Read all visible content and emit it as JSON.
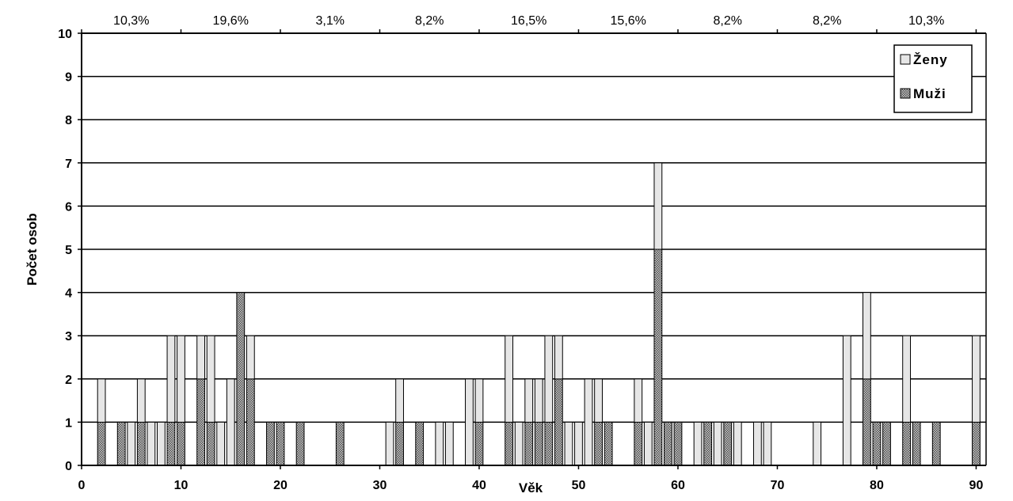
{
  "chart_data": {
    "type": "bar",
    "stacked": true,
    "title": "",
    "xlabel": "Věk",
    "ylabel": "Počet osob",
    "xlim": [
      0,
      91
    ],
    "ylim": [
      0,
      10
    ],
    "x_ticks": [
      "0",
      "10",
      "20",
      "30",
      "40",
      "50",
      "60",
      "70",
      "80",
      "90"
    ],
    "y_ticks": [
      "0",
      "1",
      "2",
      "3",
      "4",
      "5",
      "6",
      "7",
      "8",
      "9",
      "10"
    ],
    "grid": true,
    "legend_position": "top-right",
    "series": [
      {
        "name": "Ženy",
        "color": "#e6e6e6",
        "points": [
          [
            2,
            1
          ],
          [
            5,
            1
          ],
          [
            6,
            1
          ],
          [
            7,
            1
          ],
          [
            8,
            1
          ],
          [
            9,
            2
          ],
          [
            10,
            2
          ],
          [
            12,
            1
          ],
          [
            13,
            2
          ],
          [
            14,
            1
          ],
          [
            15,
            2
          ],
          [
            17,
            1
          ],
          [
            31,
            1
          ],
          [
            32,
            1
          ],
          [
            36,
            1
          ],
          [
            37,
            1
          ],
          [
            39,
            2
          ],
          [
            40,
            1
          ],
          [
            43,
            2
          ],
          [
            44,
            1
          ],
          [
            45,
            1
          ],
          [
            46,
            1
          ],
          [
            47,
            2
          ],
          [
            48,
            1
          ],
          [
            49,
            1
          ],
          [
            50,
            1
          ],
          [
            51,
            2
          ],
          [
            52,
            1
          ],
          [
            56,
            1
          ],
          [
            57,
            1
          ],
          [
            58,
            2
          ],
          [
            62,
            1
          ],
          [
            64,
            1
          ],
          [
            66,
            1
          ],
          [
            68,
            1
          ],
          [
            69,
            1
          ],
          [
            74,
            1
          ],
          [
            77,
            3
          ],
          [
            79,
            2
          ],
          [
            83,
            2
          ],
          [
            90,
            2
          ]
        ]
      },
      {
        "name": "Muži",
        "color": "#808080",
        "points": [
          [
            2,
            1
          ],
          [
            4,
            1
          ],
          [
            6,
            1
          ],
          [
            9,
            1
          ],
          [
            10,
            1
          ],
          [
            12,
            2
          ],
          [
            13,
            1
          ],
          [
            16,
            4
          ],
          [
            17,
            2
          ],
          [
            19,
            1
          ],
          [
            20,
            1
          ],
          [
            22,
            1
          ],
          [
            26,
            1
          ],
          [
            32,
            1
          ],
          [
            34,
            1
          ],
          [
            40,
            1
          ],
          [
            43,
            1
          ],
          [
            45,
            1
          ],
          [
            46,
            1
          ],
          [
            47,
            1
          ],
          [
            48,
            2
          ],
          [
            52,
            1
          ],
          [
            53,
            1
          ],
          [
            56,
            1
          ],
          [
            58,
            5
          ],
          [
            59,
            1
          ],
          [
            60,
            1
          ],
          [
            63,
            1
          ],
          [
            65,
            1
          ],
          [
            79,
            2
          ],
          [
            80,
            1
          ],
          [
            81,
            1
          ],
          [
            83,
            1
          ],
          [
            84,
            1
          ],
          [
            86,
            1
          ],
          [
            90,
            1
          ]
        ]
      }
    ],
    "interval_percentages": [
      "10,3%",
      "19,6%",
      "3,1%",
      "8,2%",
      "16,5%",
      "15,6%",
      "8,2%",
      "8,2%",
      "10,3%"
    ]
  }
}
